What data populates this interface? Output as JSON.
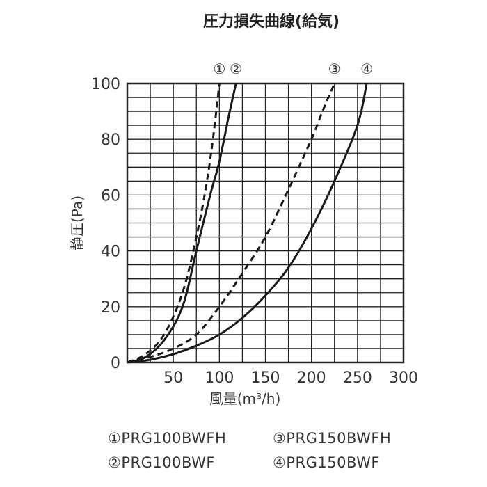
{
  "chart_data": {
    "type": "line",
    "title": "圧力損失曲線(給気)",
    "xlabel": "風量(m³/h)",
    "ylabel": "静圧(Pa)",
    "xlim": [
      0,
      300
    ],
    "ylim": [
      0,
      100
    ],
    "x_ticks": [
      "50",
      "100",
      "150",
      "200",
      "250",
      "300"
    ],
    "y_ticks": [
      "0",
      "20",
      "40",
      "60",
      "80",
      "100"
    ],
    "grid": true,
    "series": [
      {
        "name": "PRG100BWFH",
        "marker": "①",
        "style": "dashed",
        "points": [
          [
            0,
            0
          ],
          [
            20,
            3
          ],
          [
            40,
            10
          ],
          [
            60,
            25
          ],
          [
            75,
            45
          ],
          [
            85,
            62
          ],
          [
            93,
            80
          ],
          [
            100,
            100
          ]
        ]
      },
      {
        "name": "PRG100BWF",
        "marker": "②",
        "style": "solid",
        "points": [
          [
            0,
            0
          ],
          [
            20,
            2
          ],
          [
            40,
            8
          ],
          [
            60,
            20
          ],
          [
            75,
            40
          ],
          [
            90,
            60
          ],
          [
            100,
            72
          ],
          [
            110,
            88
          ],
          [
            118,
            100
          ]
        ]
      },
      {
        "name": "PRG150BWFH",
        "marker": "③",
        "style": "dashed",
        "points": [
          [
            0,
            0
          ],
          [
            25,
            2
          ],
          [
            50,
            5
          ],
          [
            75,
            10
          ],
          [
            100,
            20
          ],
          [
            125,
            32
          ],
          [
            150,
            45
          ],
          [
            175,
            62
          ],
          [
            200,
            80
          ],
          [
            212,
            90
          ],
          [
            225,
            100
          ]
        ]
      },
      {
        "name": "PRG150BWF",
        "marker": "④",
        "style": "solid",
        "points": [
          [
            0,
            0
          ],
          [
            25,
            1
          ],
          [
            50,
            3
          ],
          [
            75,
            6
          ],
          [
            100,
            10
          ],
          [
            125,
            16
          ],
          [
            150,
            24
          ],
          [
            175,
            34
          ],
          [
            200,
            48
          ],
          [
            225,
            65
          ],
          [
            250,
            85
          ],
          [
            260,
            100
          ]
        ]
      }
    ],
    "legend": [
      {
        "marker": "①",
        "name": "PRG100BWFH"
      },
      {
        "marker": "③",
        "name": "PRG150BWFH"
      },
      {
        "marker": "②",
        "name": "PRG100BWF"
      },
      {
        "marker": "④",
        "name": "PRG150BWF"
      }
    ]
  }
}
